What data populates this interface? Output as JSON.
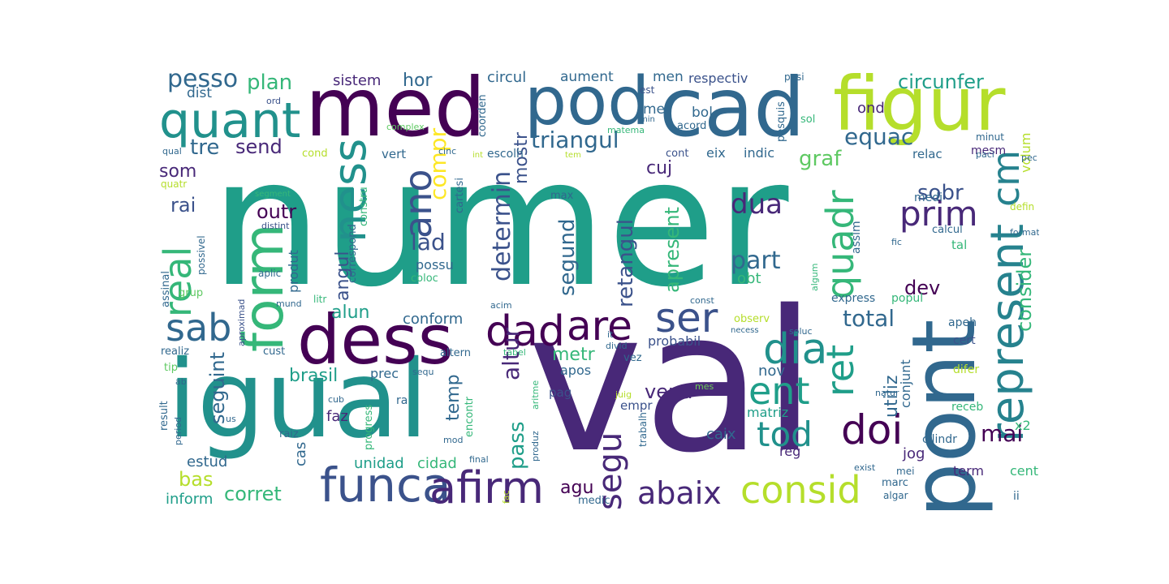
{
  "colors": {
    "c0": "#440154",
    "c1": "#3b528b",
    "c2": "#21918c",
    "c3": "#1f9e89",
    "c4": "#35b779",
    "c5": "#5ec962",
    "c6": "#b5de2b",
    "c7": "#26828e",
    "c8": "#31688e",
    "c9": "#482878",
    "c10": "#fde725",
    "c11": "#6ece58"
  },
  "words": {
    "numer": "numer",
    "val": "val",
    "pont": "pont",
    "igual": "igual",
    "cad": "cad",
    "med": "med",
    "figur": "figur",
    "pod": "pod",
    "dess": "dess",
    "form": "form",
    "quant": "quant",
    "funca": "funca",
    "afirm": "afirm",
    "consid": "consid",
    "represent": "represent",
    "ness": "ness",
    "dad": "dad",
    "are": "are",
    "ser": "ser",
    "dia": "dia",
    "ent": "ent",
    "abaix": "abaix",
    "doi": "doi",
    "tod": "tod",
    "sab": "sab",
    "real": "real",
    "ano": "ano",
    "segu": "segu",
    "quadr": "quadr",
    "ret": "ret",
    "cm": "cm",
    "prim": "prim",
    "equac": "equac",
    "triangul": "triangul",
    "pesso": "pesso",
    "plan": "plan",
    "circunfer": "circunfer",
    "sistem": "sistem",
    "hor": "hor",
    "circul": "circul",
    "aument": "aument",
    "men": "men",
    "respectiv": "respectiv",
    "posi": "posi",
    "dist": "dist",
    "ord": "ord",
    "est": "est",
    "me": "me",
    "bol": "bol",
    "ond": "ond",
    "tre": "tre",
    "send": "send",
    "mostr": "mostr",
    "determin": "determin",
    "graf": "graf",
    "cuj": "cuj",
    "som": "som",
    "rai": "rai",
    "outr": "outr",
    "lad": "lad",
    "compr": "compr",
    "dua": "dua",
    "part": "part",
    "sobr": "sobr",
    "consider": "consider",
    "segund": "segund",
    "retangul": "retangul",
    "apresent": "apresent",
    "angul": "angul",
    "alun": "alun",
    "conform": "conform",
    "total": "total",
    "metr": "metr",
    "altur": "altur",
    "brasil": "brasil",
    "seguint": "seguint",
    "prec": "prec",
    "temp": "temp",
    "vend": "vend",
    "probabil": "probabil",
    "utiliz": "utiliz",
    "conjunt": "conjunt",
    "mai": "mai",
    "dev": "dev",
    "apos": "apos",
    "pag": "pag",
    "empr": "empr",
    "nov": "nov",
    "matriz": "matriz",
    "faz": "faz",
    "pass": "pass",
    "bas": "bas",
    "corret": "corret",
    "agu": "agu",
    "unidad": "unidad",
    "cidad": "cidad",
    "inform": "inform",
    "estud": "estud",
    "cas": "cas",
    "caix": "caix",
    "jog": "jog",
    "reg": "reg",
    "term": "term",
    "centr": "centr",
    "volum": "volum",
    "mesm": "mesm",
    "relac": "relac",
    "indic": "indic",
    "eix": "eix",
    "cont": "cont",
    "x2": "x2",
    "obt": "obt",
    "apeh": "apeh",
    "tal": "tal",
    "calcul": "calcul",
    "popul": "popul",
    "express": "express",
    "cert": "cert",
    "difer": "difer",
    "receb": "receb",
    "cilindr": "cilindr",
    "marc": "marc",
    "algar": "algar",
    "mei": "mei",
    "ii": "ii",
    "vert": "vert",
    "escolh": "escolh",
    "cond": "cond",
    "cinc": "cinc",
    "int": "int",
    "tem": "tem",
    "paci": "paci",
    "minut": "minut",
    "pec": "pec",
    "matema": "matema",
    "min": "min",
    "acord": "acord",
    "pesquis": "pesquis",
    "sol": "sol",
    "complex": "complex",
    "coorden": "coorden",
    "cartesi": "cartesi",
    "qual": "qual",
    "quatr": "quatr",
    "segment": "segment",
    "constru": "constru",
    "max": "max",
    "medi": "medi",
    "defin": "defin",
    "fic": "fic",
    "format": "format",
    "distint": "distint",
    "possivel": "possivel",
    "correspond": "correspond",
    "assim": "assim",
    "algum": "algum",
    "produt": "produt",
    "possu": "possu",
    "coloc": "coloc",
    "aplic": "aplic",
    "assinal": "assinal",
    "grup": "grup",
    "mund": "mund",
    "aproximad": "aproximad",
    "litr": "litr",
    "acim": "acim",
    "const": "const",
    "observ": "observ",
    "necess": "necess",
    "soluc": "soluc",
    "it": "it",
    "divid": "divid",
    "vez": "vez",
    "realiz": "realiz",
    "cust": "cust",
    "altern": "altern",
    "tabel": "tabel",
    "tip": "tip",
    "ab": "ab",
    "sequ": "sequ",
    "mes": "mes",
    "natur": "natur",
    "result": "result",
    "period": "period",
    "us": "us",
    "cub": "cub",
    "ra": "ra",
    "aritme": "aritme",
    "juig": "juig",
    "trabalh": "trabalh",
    "progress": "progress",
    "encontr": "encontr",
    "raiz": "raiz",
    "mod": "mod",
    "produz": "produz",
    "final": "final",
    "exist": "exist",
    "fac": "fac",
    "medic": "medic"
  }
}
